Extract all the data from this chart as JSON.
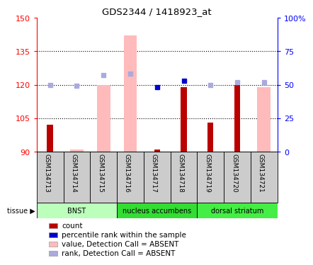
{
  "title": "GDS2344 / 1418923_at",
  "samples": [
    "GSM134713",
    "GSM134714",
    "GSM134715",
    "GSM134716",
    "GSM134717",
    "GSM134718",
    "GSM134719",
    "GSM134720",
    "GSM134721"
  ],
  "tissues": [
    {
      "name": "BNST",
      "start": 0,
      "end": 3
    },
    {
      "name": "nucleus accumbens",
      "start": 3,
      "end": 6
    },
    {
      "name": "dorsal striatum",
      "start": 6,
      "end": 9
    }
  ],
  "tissue_colors": [
    "#bbffbb",
    "#33dd33",
    "#44ee44"
  ],
  "ylim_left": [
    90,
    150
  ],
  "yticks_left": [
    90,
    105,
    120,
    135,
    150
  ],
  "ytick_labels_left": [
    "90",
    "105",
    "120",
    "135",
    "150"
  ],
  "ylim_right": [
    0,
    100
  ],
  "yticks_right": [
    0,
    25,
    50,
    75,
    100
  ],
  "ytick_labels_right": [
    "0",
    "25",
    "50",
    "75",
    "100%"
  ],
  "count_values": [
    102,
    null,
    null,
    null,
    91,
    119,
    103,
    120,
    null
  ],
  "absent_bar_values": [
    null,
    91,
    120,
    142,
    null,
    null,
    null,
    null,
    119
  ],
  "present_rank_values": [
    null,
    null,
    null,
    null,
    48,
    53,
    null,
    null,
    null
  ],
  "absent_rank_values": [
    50,
    49,
    57,
    58,
    null,
    null,
    50,
    52,
    52
  ],
  "count_color": "#bb0000",
  "absent_bar_color": "#ffbbbb",
  "present_rank_color": "#0000cc",
  "absent_rank_color": "#aaaadd",
  "legend_items": [
    {
      "label": "count",
      "color": "#bb0000"
    },
    {
      "label": "percentile rank within the sample",
      "color": "#0000cc"
    },
    {
      "label": "value, Detection Call = ABSENT",
      "color": "#ffbbbb"
    },
    {
      "label": "rank, Detection Call = ABSENT",
      "color": "#aaaadd"
    }
  ],
  "tissue_label": "tissue"
}
